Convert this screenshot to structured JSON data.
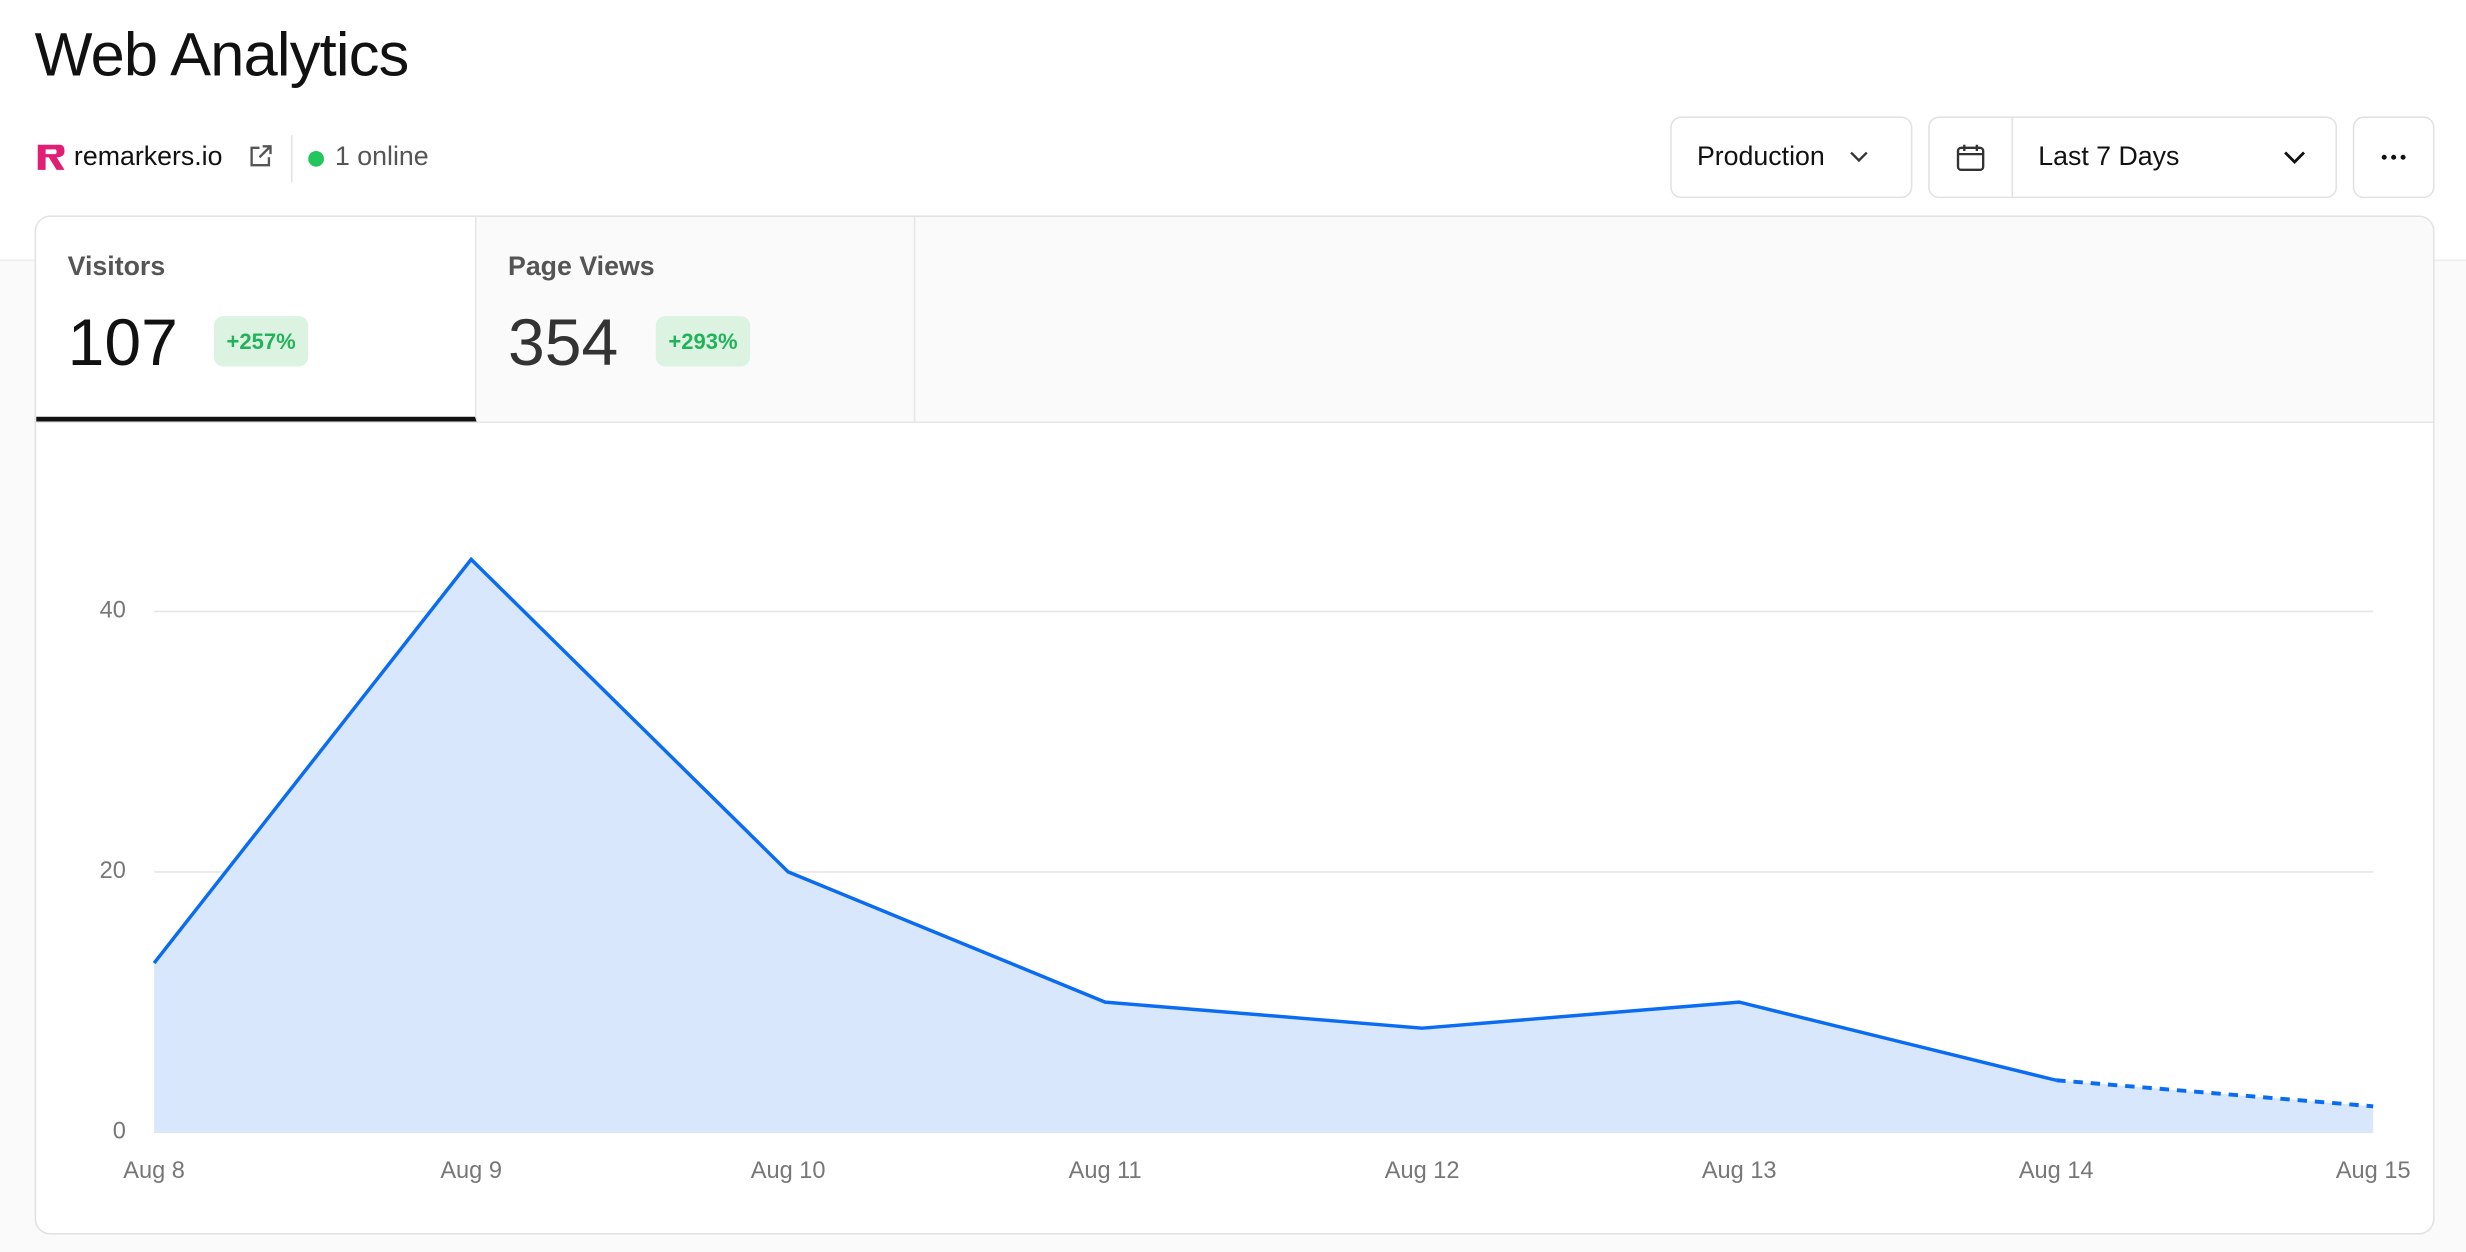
{
  "header": {
    "title": "Web Analytics",
    "site": "remarkers.io",
    "online": "1 online",
    "environment": "Production",
    "range": "Last 7 Days"
  },
  "tabs": [
    {
      "label": "Visitors",
      "value": 107,
      "change": "+257%"
    },
    {
      "label": "Page Views",
      "value": 354,
      "change": "+293%"
    }
  ],
  "chart_data": {
    "type": "area",
    "categories": [
      "Aug 8",
      "Aug 9",
      "Aug 10",
      "Aug 11",
      "Aug 12",
      "Aug 13",
      "Aug 14",
      "Aug 15"
    ],
    "values": [
      13,
      44,
      20,
      10,
      8,
      10,
      4,
      2
    ],
    "color": "#0a6cf0",
    "fill_color": "#d9e7fc",
    "ylim": [
      0,
      50
    ],
    "yticks": [
      0,
      20,
      40
    ],
    "grid": true,
    "incomplete_last_segment": true
  }
}
